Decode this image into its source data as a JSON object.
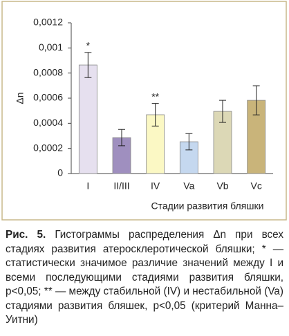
{
  "chart_data": {
    "type": "bar",
    "y_label": "Δn",
    "x_label": "Стадии развития бляшки",
    "categories": [
      "I",
      "II/III",
      "IV",
      "Va",
      "Vb",
      "Vc"
    ],
    "values": [
      0.000864,
      0.000286,
      0.000468,
      0.000253,
      0.000495,
      0.000583
    ],
    "errors": [
      0.0001,
      6.5e-05,
      9e-05,
      6.5e-05,
      8.8e-05,
      0.000116
    ],
    "colors": [
      "#e6e0ef",
      "#9f8fbf",
      "#fbf8c4",
      "#c5d8ef",
      "#dcd8b6",
      "#c9b47a"
    ],
    "annotations": [
      {
        "category": 0,
        "text": "*"
      },
      {
        "category": 2,
        "text": "**"
      }
    ],
    "ylim": [
      0,
      0.0012
    ],
    "yticks": [
      0,
      {
        "value": 0.0002,
        "label": "0,0002"
      },
      {
        "value": 0.0004,
        "label": "0,0004"
      },
      {
        "value": 0.0006,
        "label": "0,0006"
      },
      {
        "value": 0.0008,
        "label": "0,0008"
      },
      {
        "value": 0.001,
        "label": "0,001"
      },
      {
        "value": 0.0012,
        "label": "0,0012"
      }
    ],
    "grid": false
  },
  "caption": {
    "label": "Рис. 5.",
    "text": "Гистограммы распределения Δn при всех стадиях развития атеросклеротической бляшки; * — статистически значимое различие значений между I и всеми последующими стадиями развития бляшки, p<0,05; ** — между стабильной (IV) и нестабильной (Va) стадиями развития бляшек, p<0,05 (критерий Манна–Уитни)"
  }
}
